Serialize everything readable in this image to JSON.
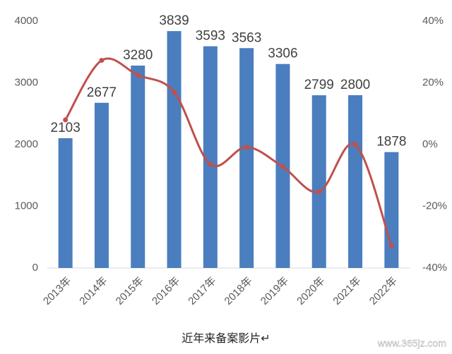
{
  "chart_data": {
    "type": "bar",
    "categories": [
      "2013年",
      "2014年",
      "2015年",
      "2016年",
      "2017年",
      "2018年",
      "2019年",
      "2020年",
      "2021年",
      "2022年"
    ],
    "series": [
      {
        "type": "bar",
        "color": "#4a7ebf",
        "values": [
          2103,
          2677,
          3280,
          3839,
          3593,
          3563,
          3306,
          2799,
          2800,
          1878
        ]
      },
      {
        "type": "line",
        "color": "#c0504d",
        "axis": "y2",
        "values": [
          8.0,
          27.3,
          22.5,
          17.0,
          -6.4,
          -0.8,
          -7.2,
          -15.3,
          0.0,
          -32.9
        ]
      }
    ],
    "ylim": [
      0,
      4000
    ],
    "yticks": [
      0,
      1000,
      2000,
      3000,
      4000
    ],
    "y2lim": [
      -40,
      40
    ],
    "y2ticks": [
      {
        "value": -40,
        "label": "-40%"
      },
      {
        "value": -20,
        "label": "-20%"
      },
      {
        "value": 0,
        "label": "0%"
      },
      {
        "value": 20,
        "label": "20%"
      },
      {
        "value": 40,
        "label": "40%"
      }
    ],
    "grid": false,
    "caption": "近年来备案影片↵",
    "watermark": "www.365jz.com"
  }
}
